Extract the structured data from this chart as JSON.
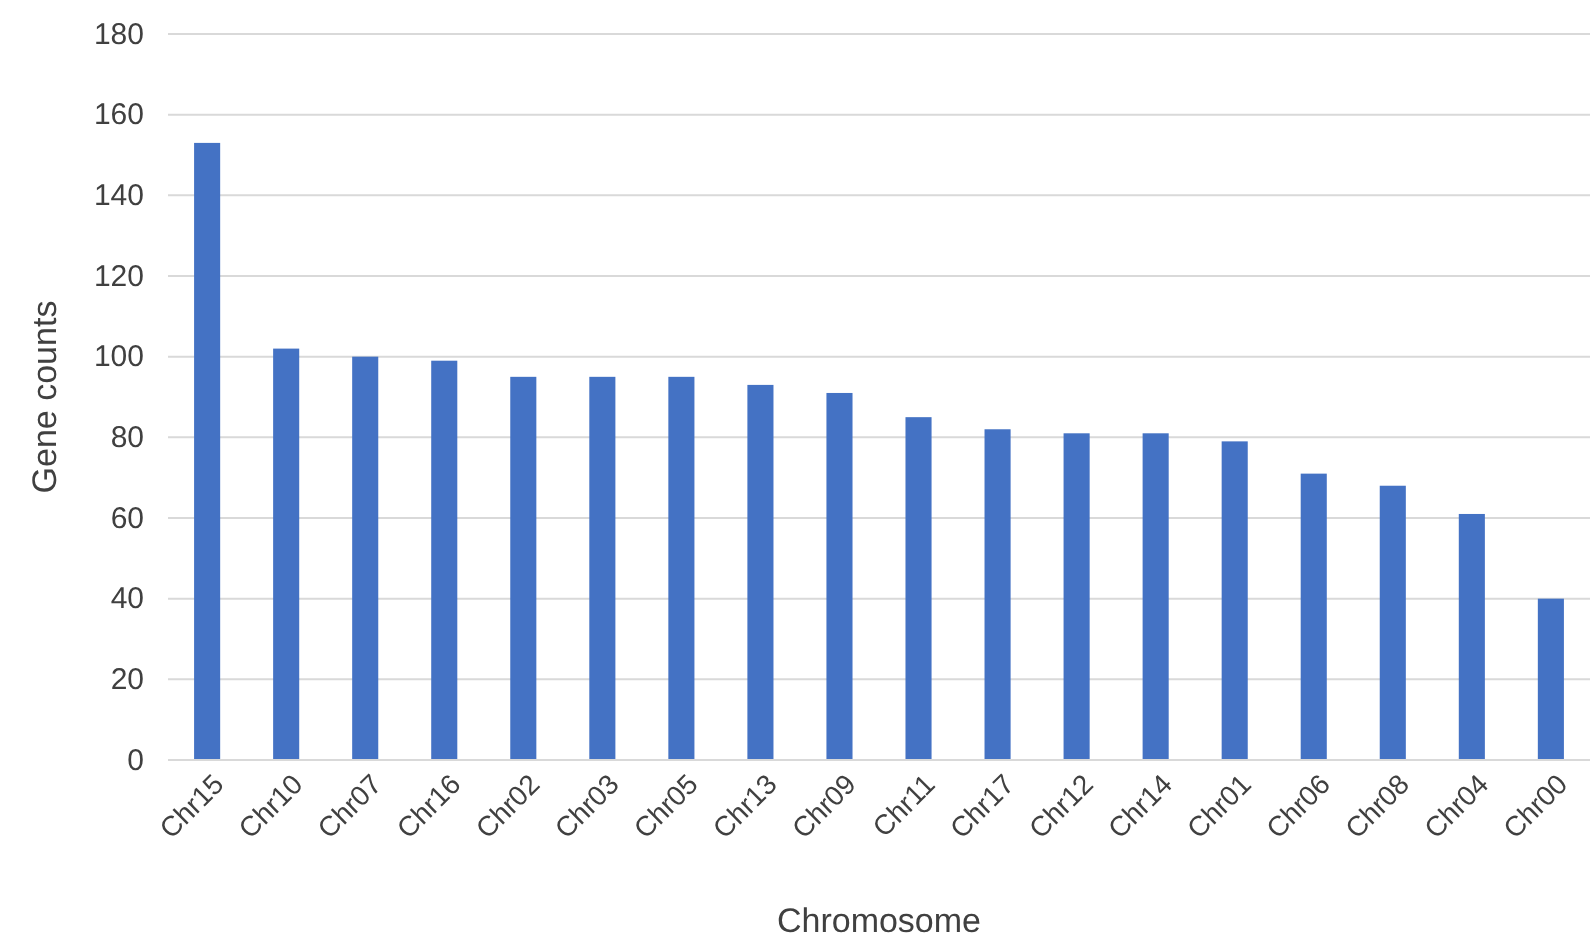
{
  "chart_data": {
    "type": "bar",
    "xlabel": "Chromosome",
    "ylabel": "Gene counts",
    "categories": [
      "Chr15",
      "Chr10",
      "Chr07",
      "Chr16",
      "Chr02",
      "Chr03",
      "Chr05",
      "Chr13",
      "Chr09",
      "Chr11",
      "Chr17",
      "Chr12",
      "Chr14",
      "Chr01",
      "Chr06",
      "Chr08",
      "Chr04",
      "Chr00"
    ],
    "values": [
      153,
      102,
      100,
      99,
      95,
      95,
      95,
      93,
      91,
      85,
      82,
      81,
      81,
      79,
      71,
      68,
      61,
      40
    ],
    "color": "#4472c4",
    "ylim": [
      0,
      180
    ],
    "yticks": [
      0,
      20,
      40,
      60,
      80,
      100,
      120,
      140,
      160,
      180
    ],
    "grid": true
  }
}
